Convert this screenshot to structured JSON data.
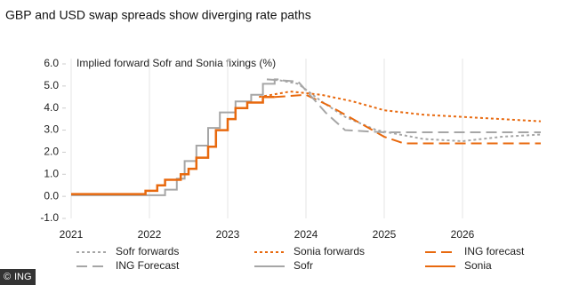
{
  "chart_data": {
    "type": "line",
    "title": "GBP and USD swap spreads show diverging rate paths",
    "annotation": "Implied forward Sofr and Sonia fixings (%)",
    "source": "ING",
    "xlim": [
      2021,
      2027
    ],
    "xticks": [
      2021,
      2022,
      2023,
      2024,
      2025,
      2026
    ],
    "ylim": [
      -1,
      6
    ],
    "yticks": [
      {
        "value": 6,
        "label": "6.0"
      },
      {
        "value": 5,
        "label": "5.0"
      },
      {
        "value": 4,
        "label": "4.0"
      },
      {
        "value": 3,
        "label": "3.0"
      },
      {
        "value": 2,
        "label": "2.0"
      },
      {
        "value": 1,
        "label": "1.0"
      },
      {
        "value": 0,
        "label": "0.0"
      },
      {
        "value": -1,
        "label": "-1.0"
      }
    ],
    "grid": true,
    "legend": "bottom",
    "series": [
      {
        "name": "Sofr forwards",
        "color": "#a6a6a6",
        "style": "dotted",
        "x": [
          2023.6,
          2023.9,
          2024.2,
          2024.5,
          2024.9,
          2025.5,
          2026.0,
          2026.5,
          2027.0
        ],
        "values": [
          5.3,
          5.1,
          4.3,
          3.6,
          3.0,
          2.6,
          2.5,
          2.7,
          2.8
        ]
      },
      {
        "name": "Sonia forwards",
        "color": "#e8690e",
        "style": "dotted",
        "x": [
          2023.4,
          2023.8,
          2024.2,
          2024.6,
          2025.0,
          2025.5,
          2026.0,
          2026.5,
          2027.0
        ],
        "values": [
          4.5,
          4.75,
          4.6,
          4.3,
          3.9,
          3.7,
          3.6,
          3.5,
          3.4
        ]
      },
      {
        "name": "ING forecast",
        "color": "#e8690e",
        "style": "dashed",
        "x": [
          2023.6,
          2024.0,
          2024.3,
          2024.6,
          2025.0,
          2025.25,
          2027.0
        ],
        "values": [
          4.5,
          4.6,
          4.1,
          3.5,
          2.7,
          2.4,
          2.4
        ]
      },
      {
        "name": "ING Forecast",
        "color": "#a6a6a6",
        "style": "dashed",
        "x": [
          2023.5,
          2023.9,
          2024.25,
          2024.5,
          2025.0,
          2027.0
        ],
        "values": [
          5.3,
          5.2,
          3.8,
          3.0,
          2.9,
          2.9
        ]
      },
      {
        "name": "Sofr",
        "color": "#a6a6a6",
        "style": "solid",
        "step": true,
        "x": [
          2021.0,
          2022.2,
          2022.35,
          2022.45,
          2022.6,
          2022.75,
          2022.9,
          2023.1,
          2023.3,
          2023.45,
          2023.6,
          2023.65
        ],
        "values": [
          0.05,
          0.3,
          0.8,
          1.6,
          2.3,
          3.1,
          3.8,
          4.3,
          4.6,
          5.1,
          5.3,
          5.3
        ]
      },
      {
        "name": "Sonia",
        "color": "#e8690e",
        "style": "solid",
        "step": true,
        "x": [
          2021.0,
          2021.95,
          2022.1,
          2022.2,
          2022.4,
          2022.5,
          2022.6,
          2022.75,
          2022.85,
          2023.0,
          2023.1,
          2023.25,
          2023.45,
          2023.6
        ],
        "values": [
          0.1,
          0.25,
          0.5,
          0.75,
          1.0,
          1.25,
          1.75,
          2.25,
          3.0,
          3.5,
          4.0,
          4.25,
          4.5,
          4.5
        ]
      }
    ]
  }
}
